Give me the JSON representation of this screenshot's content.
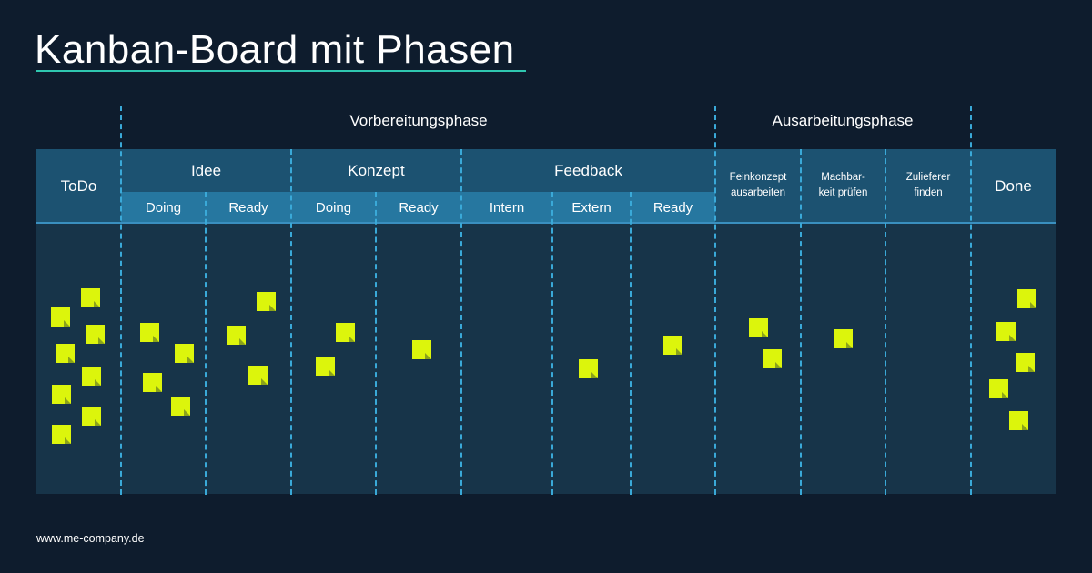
{
  "title": "Kanban-Board mit Phasen",
  "phases": {
    "preparation": "Vorbereitungsphase",
    "elaboration": "Ausarbeitungsphase"
  },
  "columns": {
    "todo": "ToDo",
    "done": "Done",
    "idee": {
      "label": "Idee",
      "doing": "Doing",
      "ready": "Ready"
    },
    "konzept": {
      "label": "Konzept",
      "doing": "Doing",
      "ready": "Ready"
    },
    "feedback": {
      "label": "Feedback",
      "intern": "Intern",
      "extern": "Extern",
      "ready": "Ready"
    },
    "feinkonzept": {
      "line1": "Feinkonzept",
      "line2": "ausarbeiten"
    },
    "machbarkeit": {
      "line1": "Machbar-",
      "line2": "keit prüfen"
    },
    "zulieferer": {
      "line1": "Zulieferer",
      "line2": "finden"
    }
  },
  "note_counts": {
    "todo": 8,
    "idee_doing": 4,
    "idee_ready": 3,
    "konzept_doing": 2,
    "konzept_ready": 1,
    "feedback_intern": 0,
    "feedback_extern": 1,
    "feedback_ready": 1,
    "feinkonzept": 2,
    "machbarkeit": 1,
    "zulieferer": 0,
    "done": 5
  },
  "colors": {
    "background": "#0e1c2d",
    "header": "#1c5271",
    "subheader": "#2677a0",
    "board": "#173449",
    "divider": "#3aa9d8",
    "note": "#dcf50c",
    "accent": "#2fc7b0"
  },
  "footer": "www.me-company.de"
}
